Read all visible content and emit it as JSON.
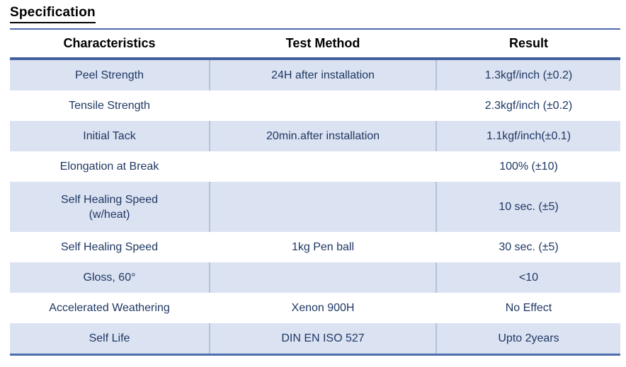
{
  "title": "Specification",
  "colors": {
    "rule_blue": "#4f6cae",
    "header_rule_blue": "#44619e",
    "row_shade": "#dbe2f1",
    "cell_divider": "#b7c1dc",
    "body_text": "#1f3864",
    "heading_text": "#000000"
  },
  "table": {
    "columns": [
      "Characteristics",
      "Test Method",
      "Result"
    ],
    "rows": [
      {
        "characteristics": "Peel Strength",
        "test_method": "24H after installation",
        "result": "1.3kgf/inch (±0.2)",
        "shaded": true
      },
      {
        "characteristics": "Tensile Strength",
        "test_method": "",
        "result": "2.3kgf/inch (±0.2)",
        "shaded": false
      },
      {
        "characteristics": "Initial Tack",
        "test_method": "20min.after installation",
        "result": "1.1kgf/inch(±0.1)",
        "shaded": true
      },
      {
        "characteristics": "Elongation at Break",
        "test_method": "",
        "result": "100% (±10)",
        "shaded": false
      },
      {
        "characteristics": "Self Healing Speed\n(w/heat)",
        "test_method": "",
        "result": "10 sec. (±5)",
        "shaded": true
      },
      {
        "characteristics": "Self Healing Speed",
        "test_method": "1kg Pen ball",
        "result": "30 sec. (±5)",
        "shaded": false
      },
      {
        "characteristics": "Gloss, 60°",
        "test_method": "",
        "result": "<10",
        "shaded": true
      },
      {
        "characteristics": "Accelerated Weathering",
        "test_method": "Xenon 900H",
        "result": "No Effect",
        "shaded": false
      },
      {
        "characteristics": "Self Life",
        "test_method": "DIN EN ISO 527",
        "result": "Upto 2years",
        "shaded": true
      }
    ]
  }
}
